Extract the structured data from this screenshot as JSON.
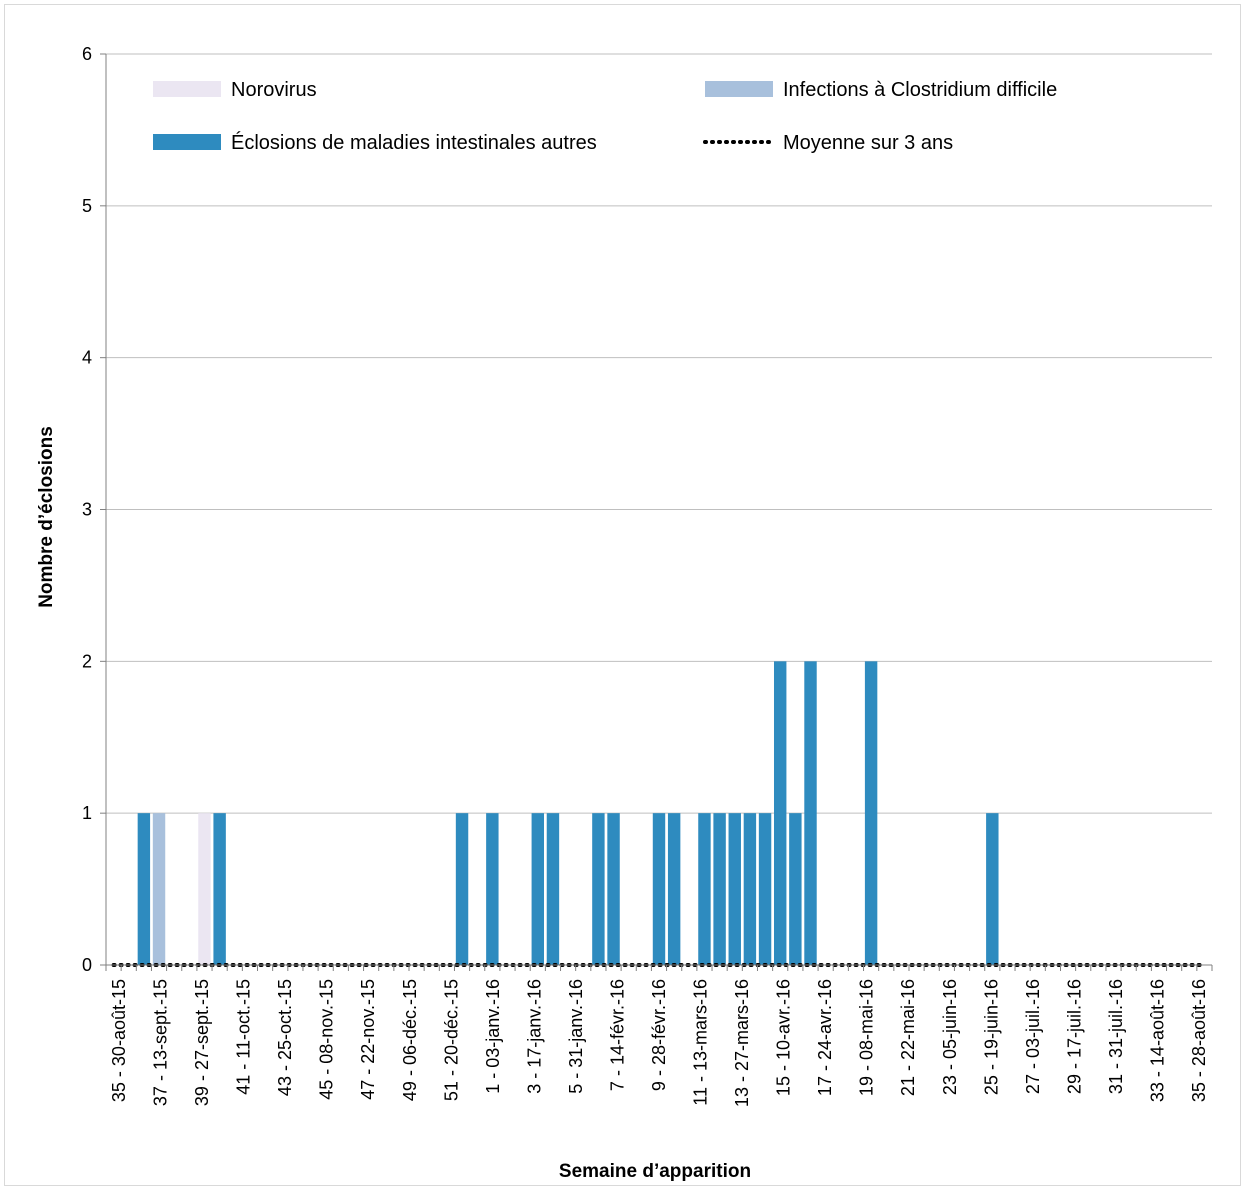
{
  "chart_data": {
    "type": "bar",
    "stacked": true,
    "xlabel": "Semaine d’apparition",
    "ylabel": "Nombre d’éclosions",
    "ylim": [
      0,
      6
    ],
    "yticks": [
      0,
      1,
      2,
      3,
      4,
      5,
      6
    ],
    "grid": true,
    "legend_position": "top",
    "tick_labels": [
      "35 - 30-août-15",
      "37 - 13-sept.-15",
      "39 - 27-sept.-15",
      "41 - 11-oct.-15",
      "43 - 25-oct.-15",
      "45 - 08-nov.-15",
      "47 - 22-nov.-15",
      "49 - 06-déc.-15",
      "51 - 20-déc.-15",
      "1 - 03-janv.-16",
      "3 - 17-janv.-16",
      "5 - 31-janv.-16",
      "7 - 14-févr.-16",
      "9 - 28-févr.-16",
      "11 - 13-mars-16",
      "13 - 27-mars-16",
      "15 - 10-avr.-16",
      "17 - 24-avr.-16",
      "19 - 08-mai-16",
      "21 - 22-mai-16",
      "23 - 05-juin-16",
      "25 - 19-juin-16",
      "27 - 03-juil.-16",
      "29 - 17-juil.-16",
      "31 - 31-juil.-16",
      "33 - 14-août-16",
      "35 - 28-août-16"
    ],
    "series": [
      {
        "name": "Éclosions de maladies intestinales autres",
        "type": "bar",
        "color": "#2e8bbf",
        "values": [
          0,
          0,
          1,
          0,
          0,
          0,
          0,
          1,
          0,
          0,
          0,
          0,
          0,
          0,
          0,
          0,
          0,
          0,
          0,
          0,
          0,
          0,
          0,
          1,
          0,
          1,
          0,
          0,
          1,
          1,
          0,
          0,
          1,
          1,
          0,
          0,
          1,
          1,
          0,
          1,
          1,
          1,
          1,
          1,
          2,
          1,
          2,
          0,
          0,
          0,
          2,
          0,
          0,
          0,
          0,
          0,
          0,
          0,
          1,
          0,
          0,
          0,
          0,
          0,
          0,
          0,
          0,
          0,
          0,
          0,
          0,
          0,
          0
        ]
      },
      {
        "name": "Infections à Clostridium difficile",
        "type": "bar",
        "color": "#a8c0dc",
        "values": [
          0,
          0,
          0,
          1,
          0,
          0,
          0,
          0,
          0,
          0,
          0,
          0,
          0,
          0,
          0,
          0,
          0,
          0,
          0,
          0,
          0,
          0,
          0,
          0,
          0,
          0,
          0,
          0,
          0,
          0,
          0,
          0,
          0,
          0,
          0,
          0,
          0,
          0,
          0,
          0,
          0,
          0,
          0,
          0,
          0,
          0,
          0,
          0,
          0,
          0,
          0,
          0,
          0,
          0,
          0,
          0,
          0,
          0,
          0,
          0,
          0,
          0,
          0,
          0,
          0,
          0,
          0,
          0,
          0,
          0,
          0,
          0,
          0
        ]
      },
      {
        "name": "Norovirus",
        "type": "bar",
        "color": "#ebe6f2",
        "values": [
          0,
          0,
          0,
          0,
          0,
          0,
          1,
          0,
          0,
          0,
          0,
          0,
          0,
          0,
          0,
          0,
          0,
          0,
          0,
          0,
          0,
          0,
          0,
          0,
          0,
          0,
          0,
          0,
          0,
          0,
          0,
          0,
          0,
          0,
          0,
          0,
          0,
          0,
          0,
          0,
          0,
          0,
          0,
          0,
          0,
          0,
          0,
          0,
          0,
          0,
          0,
          0,
          0,
          0,
          0,
          0,
          0,
          0,
          0,
          0,
          0,
          0,
          0,
          0,
          0,
          0,
          0,
          0,
          0,
          0,
          0,
          0,
          0
        ]
      },
      {
        "name": "Moyenne sur 3 ans",
        "type": "line",
        "style": "dotted",
        "color": "#000000",
        "values": [
          0,
          0,
          0,
          0,
          0,
          0,
          0,
          0,
          0,
          0,
          0,
          0,
          0,
          0,
          0,
          0,
          0,
          0,
          0,
          0,
          0,
          0,
          0,
          0,
          0,
          0,
          0,
          0,
          0,
          0,
          0,
          0,
          0,
          0,
          0,
          0,
          0,
          0,
          0,
          0,
          0,
          0,
          0,
          0,
          0,
          0,
          0,
          0,
          0,
          0,
          0,
          0,
          0,
          0,
          0,
          0,
          0,
          0,
          0,
          0,
          0,
          0,
          0,
          0,
          0,
          0,
          0,
          0,
          0,
          0,
          0,
          0,
          0
        ]
      }
    ]
  }
}
